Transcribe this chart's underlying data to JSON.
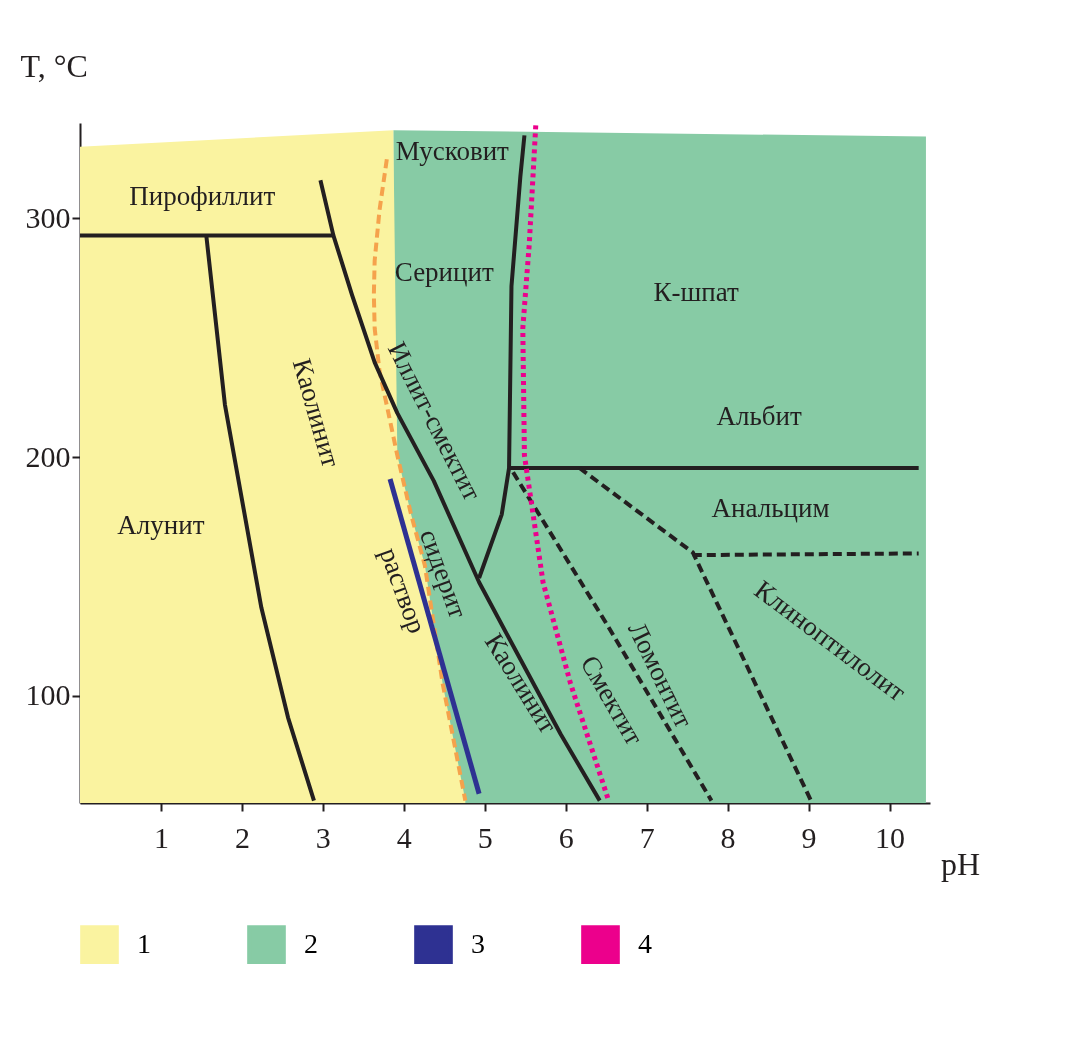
{
  "chart_data": {
    "type": "line",
    "xlabel": "pH",
    "ylabel": "T, °C",
    "xlim": [
      0,
      10.5
    ],
    "ylim": [
      55,
      340
    ],
    "xticks": [
      1,
      2,
      3,
      4,
      5,
      6,
      7,
      8,
      9,
      10
    ],
    "yticks": [
      100,
      200,
      300
    ],
    "grid": false,
    "legend": "bottom",
    "marker": "none",
    "series": [
      {
        "name": "2",
        "type": "area",
        "color": "#87cba5",
        "x": [
          3.87,
          10.45
        ],
        "values": [
          337,
          334.3
        ]
      },
      {
        "name": "1",
        "type": "area",
        "color": "#faf3a0",
        "x": [
          0,
          3.87,
          3.92,
          4.09,
          4.26,
          4.48,
          4.76
        ],
        "values": [
          330,
          337,
          200.7,
          175.9,
          154.6,
          105,
          56
        ]
      },
      {
        "color": "#f5a24c",
        "line_style": "dashed",
        "x": [
          3.79,
          3.7,
          3.64,
          3.63,
          3.64,
          3.7,
          3.81,
          3.92,
          4.09,
          4.26,
          4.48,
          4.76
        ],
        "values": [
          324.8,
          303.5,
          282.3,
          268,
          254,
          236,
          218.4,
          200.7,
          175.9,
          154.6,
          105,
          56
        ]
      },
      {
        "color": "#231f20",
        "line_style": "solid",
        "x": [
          0,
          3.13
        ],
        "values": [
          292.9,
          292.9
        ]
      },
      {
        "color": "#231f20",
        "line_style": "solid",
        "x": [
          1.56,
          1.79,
          2.24,
          2.57,
          2.89
        ],
        "values": [
          292.9,
          222,
          136.9,
          90.8,
          56
        ]
      },
      {
        "color": "#231f20",
        "line_style": "solid",
        "x": [
          2.97,
          3.13,
          3.36,
          3.64,
          3.92,
          4.37,
          4.93,
          5.38,
          5.94,
          6.42
        ],
        "values": [
          316,
          292.9,
          268,
          239.7,
          218.4,
          190,
          147.5,
          119,
          83.7,
          56
        ]
      },
      {
        "color": "#231f20",
        "line_style": "solid",
        "x": [
          5.49,
          5.44,
          5.33,
          5.3,
          5.21,
          4.93
        ],
        "values": [
          334.8,
          317.7,
          271.6,
          195.4,
          176,
          149.3
        ]
      },
      {
        "color": "#231f20",
        "line_style": "solid",
        "x": [
          5.3,
          10.36
        ],
        "values": [
          195.4,
          195.4
        ]
      },
      {
        "color": "#231f20",
        "line_style": "dashed",
        "x": [
          5.35,
          6.51,
          7.8
        ],
        "values": [
          193.6,
          129.8,
          56
        ]
      },
      {
        "color": "#231f20",
        "line_style": "dashed",
        "x": [
          6.17,
          7.57,
          9.03
        ],
        "values": [
          195.4,
          160,
          56
        ]
      },
      {
        "color": "#231f20",
        "line_style": "dashed",
        "x": [
          7.57,
          10.36
        ],
        "values": [
          158.9,
          159.6
        ]
      },
      {
        "name": "3",
        "color": "#2e3192",
        "line_style": "solid",
        "x": [
          3.83,
          4.93
        ],
        "values": [
          190.8,
          58.9
        ]
      },
      {
        "name": "4",
        "color": "#ec008c",
        "line_style": "dotted",
        "x": [
          5.63,
          5.55,
          5.47,
          5.49,
          5.72,
          6.06,
          6.53
        ],
        "values": [
          339,
          289.4,
          254,
          200.7,
          147.5,
          105,
          56
        ]
      }
    ],
    "annotations": [
      "Мусковит",
      "Пирофиллит",
      "Серицит",
      "К-шпат",
      "Альбит",
      "Анальцим",
      "Алунит",
      "Каолинит",
      "Иллит-смектит",
      "сидерит",
      "раствор",
      "Каолинит",
      "Смектит",
      "Ломонтит",
      "Клиноптилолит"
    ]
  }
}
